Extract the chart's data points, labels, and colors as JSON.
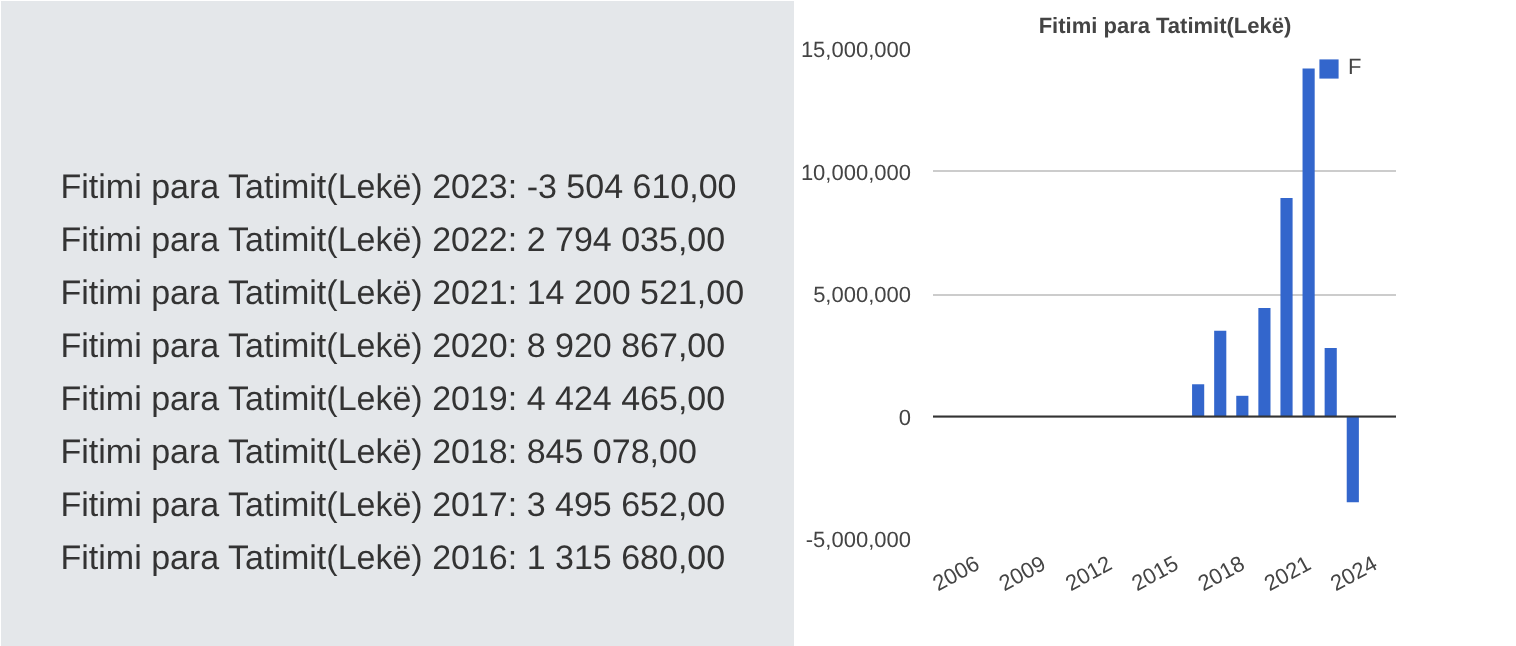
{
  "chart_data": [
    {
      "type": "other",
      "annotations": [
        "Fitimi para Tatimit(Lekë) 2023: -3 504 610,00",
        "Fitimi para Tatimit(Lekë) 2022: 2 794 035,00",
        "Fitimi para Tatimit(Lekë) 2021: 14 200 521,00",
        "Fitimi para Tatimit(Lekë) 2020: 8 920 867,00",
        "Fitimi para Tatimit(Lekë) 2019: 4 424 465,00",
        "Fitimi para Tatimit(Lekë) 2018: 845 078,00",
        "Fitimi para Tatimit(Lekë) 2017: 3 495 652,00",
        "Fitimi para Tatimit(Lekë) 2016: 1 315 680,00"
      ]
    },
    {
      "type": "bar",
      "title": "Fitimi para Tatimit(Lekë)",
      "x": [
        2016,
        2017,
        2018,
        2019,
        2020,
        2021,
        2022,
        2023
      ],
      "series": [
        {
          "name": "F",
          "color": "#3366cc",
          "values": [
            1315680,
            3495652,
            845078,
            4424465,
            8920867,
            14200521,
            2794035,
            -3504610
          ]
        }
      ],
      "xlim": [
        2004,
        2025
      ],
      "xticks": [
        2006,
        2009,
        2012,
        2015,
        2018,
        2021,
        2024
      ],
      "ylim": [
        -5000000,
        15000000
      ],
      "yticks": [
        {
          "value": -5000000,
          "label": "-5,000,000"
        },
        0,
        {
          "value": 5000000,
          "label": "5,000,000"
        },
        {
          "value": 10000000,
          "label": "10,000,000"
        },
        {
          "value": 15000000,
          "label": "15,000,000"
        }
      ],
      "grid": "y",
      "legend": "top right"
    }
  ]
}
